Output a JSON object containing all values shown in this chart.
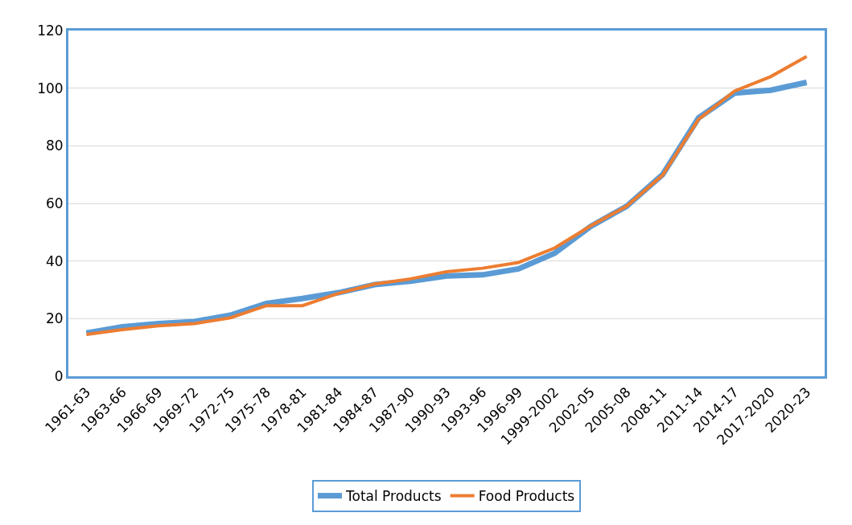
{
  "chart_data": {
    "type": "line",
    "categories": [
      "1961-63",
      "1963-66",
      "1966-69",
      "1969-72",
      "1972-75",
      "1975-78",
      "1978-81",
      "1981-84",
      "1984-87",
      "1987-90",
      "1990-93",
      "1993-96",
      "1996-99",
      "1999-2002",
      "2002-05",
      "2005-08",
      "2008-11",
      "2011-14",
      "2014-17",
      "2017-2020",
      "2020-23"
    ],
    "series": [
      {
        "name": "Total Products",
        "color": "#5b9bd5",
        "values": [
          15,
          17.2,
          18.3,
          19,
          21.2,
          25.3,
          27,
          29,
          31.8,
          33,
          34.8,
          35.2,
          37.3,
          42.7,
          52,
          59,
          70,
          89.7,
          98.3,
          99.3,
          102
        ]
      },
      {
        "name": "Food Products",
        "color": "#ed7d31",
        "values": [
          14.5,
          16.2,
          17.5,
          18.3,
          20.3,
          24.5,
          24.5,
          28.8,
          32,
          33.8,
          36.3,
          37.5,
          39.5,
          44.5,
          52.2,
          59,
          69.8,
          89.2,
          99,
          104,
          111
        ]
      }
    ],
    "ylim": [
      0,
      120
    ],
    "yticks": [
      0,
      20,
      40,
      60,
      80,
      100,
      120
    ],
    "grid": "y",
    "legend": "bottom",
    "marker": "none",
    "line_style": "solid"
  }
}
